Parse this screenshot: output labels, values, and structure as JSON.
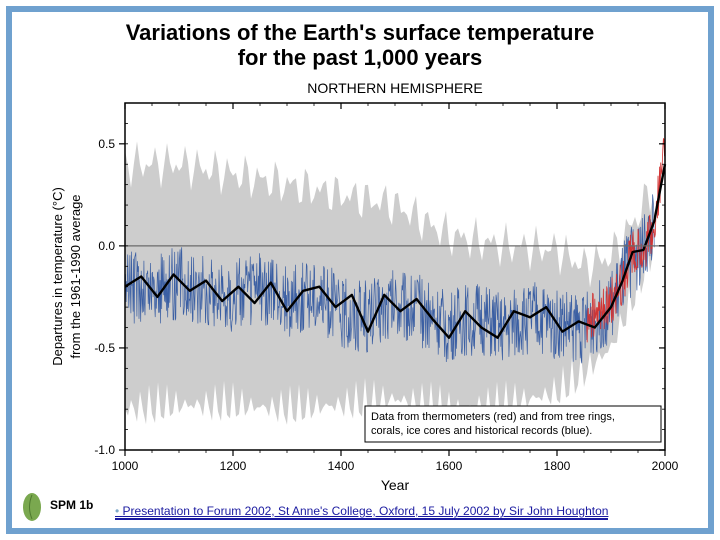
{
  "title_line1": "Variations of the Earth's surface temperature",
  "title_line2": "for the past 1,000 years",
  "title_fontsize": 22,
  "title_color": "#000000",
  "subtitle": "NORTHERN HEMISPHERE",
  "subtitle_fontsize": 14,
  "xlabel": "Year",
  "ylabel_line1": "Departures in temperature (°C)",
  "ylabel_line2": "from the 1961-1990 average",
  "label_fontsize": 12,
  "axis_color": "#000000",
  "grid_color": "#d9d9d9",
  "background_color": "#ffffff",
  "zero_line_color": "#6b6b6b",
  "xlim": [
    1000,
    2000
  ],
  "ylim": [
    -1.0,
    0.7
  ],
  "xticks": [
    1000,
    1200,
    1400,
    1600,
    1800,
    2000
  ],
  "yticks": [
    -1.0,
    -0.5,
    0.0,
    0.5
  ],
  "legend_box": {
    "text_line1": "Data from thermometers (red) and from tree rings,",
    "text_line2": "corals, ice cores and historical records (blue).",
    "fontsize": 11,
    "border_color": "#000000",
    "background": "#ffffff"
  },
  "spm_label": "SPM 1b",
  "footer_text": "Presentation to Forum 2002, St Anne's College, Oxford, 15 July 2002 by Sir John Houghton",
  "footer_color": "#1a1aa0",
  "border_color": "#6fa1cf",
  "chart": {
    "type": "line",
    "series": {
      "proxy_blue": {
        "color": "#3b5fa3",
        "width": 0.7,
        "x_range": [
          1000,
          1980
        ],
        "baseline": [
          {
            "x": 1000,
            "y": -0.2
          },
          {
            "x": 1050,
            "y": -0.22
          },
          {
            "x": 1100,
            "y": -0.18
          },
          {
            "x": 1150,
            "y": -0.22
          },
          {
            "x": 1200,
            "y": -0.25
          },
          {
            "x": 1250,
            "y": -0.2
          },
          {
            "x": 1300,
            "y": -0.28
          },
          {
            "x": 1350,
            "y": -0.22
          },
          {
            "x": 1400,
            "y": -0.32
          },
          {
            "x": 1450,
            "y": -0.35
          },
          {
            "x": 1500,
            "y": -0.28
          },
          {
            "x": 1550,
            "y": -0.32
          },
          {
            "x": 1600,
            "y": -0.4
          },
          {
            "x": 1650,
            "y": -0.35
          },
          {
            "x": 1700,
            "y": -0.42
          },
          {
            "x": 1750,
            "y": -0.35
          },
          {
            "x": 1800,
            "y": -0.38
          },
          {
            "x": 1850,
            "y": -0.4
          },
          {
            "x": 1900,
            "y": -0.3
          },
          {
            "x": 1920,
            "y": -0.18
          },
          {
            "x": 1940,
            "y": -0.05
          },
          {
            "x": 1960,
            "y": -0.02
          },
          {
            "x": 1980,
            "y": 0.1
          }
        ],
        "noise_amp": 0.18
      },
      "thermometer_red": {
        "color": "#d13434",
        "width": 0.8,
        "x_range": [
          1855,
          2000
        ],
        "baseline": [
          {
            "x": 1855,
            "y": -0.38
          },
          {
            "x": 1880,
            "y": -0.3
          },
          {
            "x": 1900,
            "y": -0.28
          },
          {
            "x": 1920,
            "y": -0.18
          },
          {
            "x": 1940,
            "y": -0.02
          },
          {
            "x": 1960,
            "y": -0.02
          },
          {
            "x": 1980,
            "y": 0.12
          },
          {
            "x": 1990,
            "y": 0.28
          },
          {
            "x": 2000,
            "y": 0.55
          }
        ],
        "noise_amp": 0.12
      },
      "smoothed_black": {
        "color": "#000000",
        "width": 2.4,
        "points": [
          {
            "x": 1000,
            "y": -0.2
          },
          {
            "x": 1030,
            "y": -0.15
          },
          {
            "x": 1060,
            "y": -0.25
          },
          {
            "x": 1090,
            "y": -0.14
          },
          {
            "x": 1120,
            "y": -0.22
          },
          {
            "x": 1150,
            "y": -0.17
          },
          {
            "x": 1180,
            "y": -0.27
          },
          {
            "x": 1210,
            "y": -0.2
          },
          {
            "x": 1240,
            "y": -0.28
          },
          {
            "x": 1270,
            "y": -0.18
          },
          {
            "x": 1300,
            "y": -0.32
          },
          {
            "x": 1330,
            "y": -0.22
          },
          {
            "x": 1360,
            "y": -0.2
          },
          {
            "x": 1390,
            "y": -0.3
          },
          {
            "x": 1420,
            "y": -0.24
          },
          {
            "x": 1450,
            "y": -0.42
          },
          {
            "x": 1480,
            "y": -0.24
          },
          {
            "x": 1510,
            "y": -0.32
          },
          {
            "x": 1540,
            "y": -0.26
          },
          {
            "x": 1570,
            "y": -0.36
          },
          {
            "x": 1600,
            "y": -0.45
          },
          {
            "x": 1630,
            "y": -0.32
          },
          {
            "x": 1660,
            "y": -0.4
          },
          {
            "x": 1690,
            "y": -0.45
          },
          {
            "x": 1720,
            "y": -0.32
          },
          {
            "x": 1750,
            "y": -0.35
          },
          {
            "x": 1780,
            "y": -0.3
          },
          {
            "x": 1810,
            "y": -0.42
          },
          {
            "x": 1840,
            "y": -0.37
          },
          {
            "x": 1870,
            "y": -0.4
          },
          {
            "x": 1900,
            "y": -0.3
          },
          {
            "x": 1920,
            "y": -0.18
          },
          {
            "x": 1940,
            "y": -0.03
          },
          {
            "x": 1960,
            "y": -0.02
          },
          {
            "x": 1980,
            "y": 0.12
          },
          {
            "x": 2000,
            "y": 0.4
          }
        ]
      },
      "uncertainty_band": {
        "color": "#c8c8c8",
        "opacity": 0.9,
        "band": [
          {
            "x": 1000,
            "lo": -0.8,
            "hi": 0.4
          },
          {
            "x": 1100,
            "lo": -0.78,
            "hi": 0.4
          },
          {
            "x": 1200,
            "lo": -0.78,
            "hi": 0.35
          },
          {
            "x": 1300,
            "lo": -0.8,
            "hi": 0.3
          },
          {
            "x": 1400,
            "lo": -0.78,
            "hi": 0.25
          },
          {
            "x": 1500,
            "lo": -0.75,
            "hi": 0.2
          },
          {
            "x": 1600,
            "lo": -0.8,
            "hi": 0.05
          },
          {
            "x": 1700,
            "lo": -0.78,
            "hi": 0.0
          },
          {
            "x": 1800,
            "lo": -0.72,
            "hi": -0.02
          },
          {
            "x": 1850,
            "lo": -0.62,
            "hi": -0.1
          },
          {
            "x": 1900,
            "lo": -0.5,
            "hi": -0.05
          },
          {
            "x": 1950,
            "lo": -0.2,
            "hi": 0.15
          },
          {
            "x": 1980,
            "lo": 0.0,
            "hi": 0.3
          }
        ]
      }
    }
  }
}
